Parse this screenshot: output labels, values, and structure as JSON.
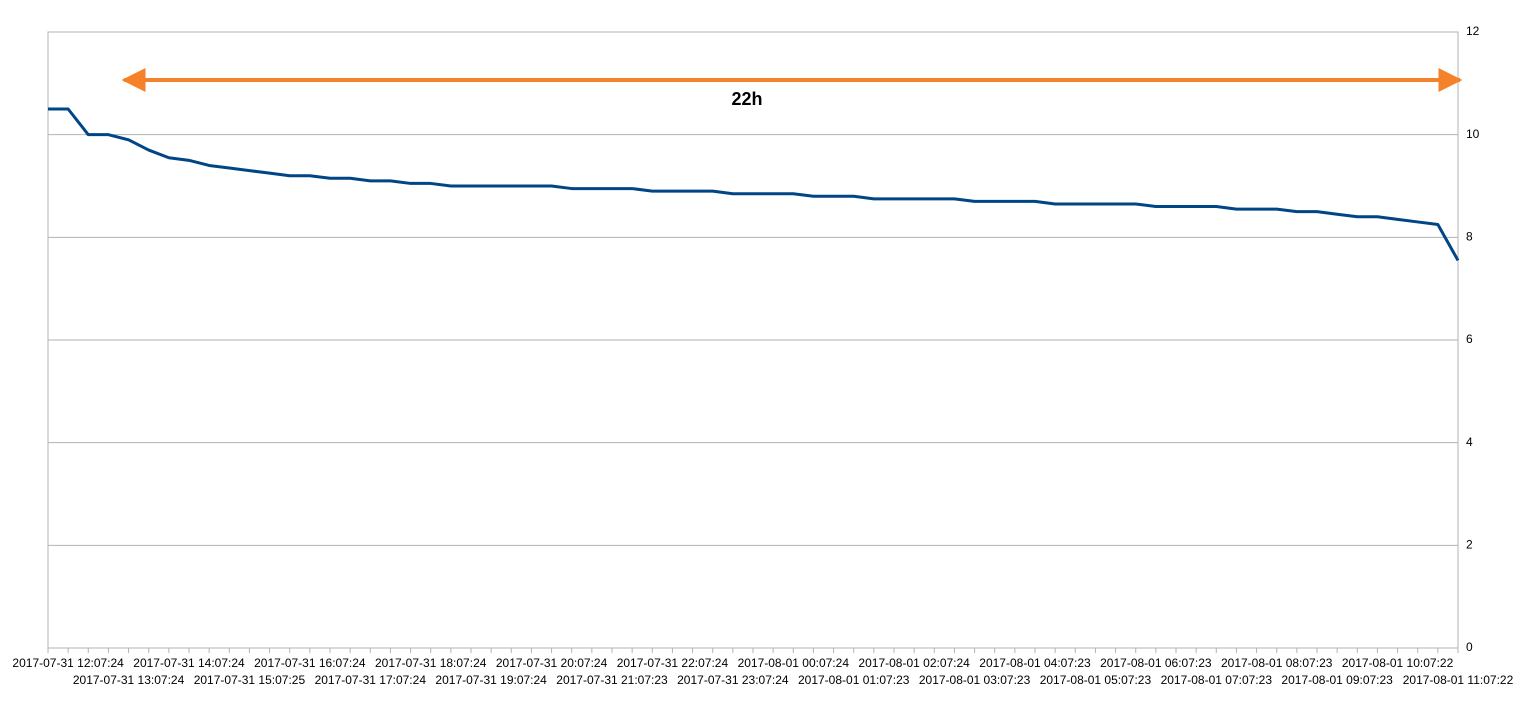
{
  "chart_data": {
    "type": "line",
    "annotation": "22h",
    "annotation_color": "#f5822a",
    "categories": [
      null,
      "2017-07-31 12:07:24",
      null,
      null,
      "2017-07-31 13:07:24",
      null,
      null,
      "2017-07-31 14:07:24",
      null,
      null,
      "2017-07-31 15:07:25",
      null,
      null,
      "2017-07-31 16:07:24",
      null,
      null,
      "2017-07-31 17:07:24",
      null,
      null,
      "2017-07-31 18:07:24",
      null,
      null,
      "2017-07-31 19:07:24",
      null,
      null,
      "2017-07-31 20:07:24",
      null,
      null,
      "2017-07-31 21:07:23",
      null,
      null,
      "2017-07-31 22:07:24",
      null,
      null,
      "2017-07-31 23:07:24",
      null,
      null,
      "2017-08-01 00:07:24",
      null,
      null,
      "2017-08-01 01:07:23",
      null,
      null,
      "2017-08-01 02:07:24",
      null,
      null,
      "2017-08-01 03:07:23",
      null,
      null,
      "2017-08-01 04:07:23",
      null,
      null,
      "2017-08-01 05:07:23",
      null,
      null,
      "2017-08-01 06:07:23",
      null,
      null,
      "2017-08-01 07:07:23",
      null,
      null,
      "2017-08-01 08:07:23",
      null,
      null,
      "2017-08-01 09:07:23",
      null,
      null,
      "2017-08-01 10:07:22",
      null,
      null,
      "2017-08-01 11:07:22"
    ],
    "series": [
      {
        "color": "#004586",
        "values": [
          10.5,
          10.5,
          10.0,
          10.0,
          9.9,
          9.7,
          9.55,
          9.5,
          9.4,
          9.35,
          9.3,
          9.25,
          9.2,
          9.2,
          9.15,
          9.15,
          9.1,
          9.1,
          9.05,
          9.05,
          9.0,
          9.0,
          9.0,
          9.0,
          9.0,
          9.0,
          8.95,
          8.95,
          8.95,
          8.95,
          8.9,
          8.9,
          8.9,
          8.9,
          8.85,
          8.85,
          8.85,
          8.85,
          8.8,
          8.8,
          8.8,
          8.75,
          8.75,
          8.75,
          8.75,
          8.75,
          8.7,
          8.7,
          8.7,
          8.7,
          8.65,
          8.65,
          8.65,
          8.65,
          8.65,
          8.6,
          8.6,
          8.6,
          8.6,
          8.55,
          8.55,
          8.55,
          8.5,
          8.5,
          8.45,
          8.4,
          8.4,
          8.35,
          8.3,
          8.25,
          7.55
        ]
      }
    ],
    "ylim": [
      0,
      12
    ],
    "yticks": [
      0,
      2,
      4,
      6,
      8,
      10,
      12
    ],
    "grid": true
  }
}
